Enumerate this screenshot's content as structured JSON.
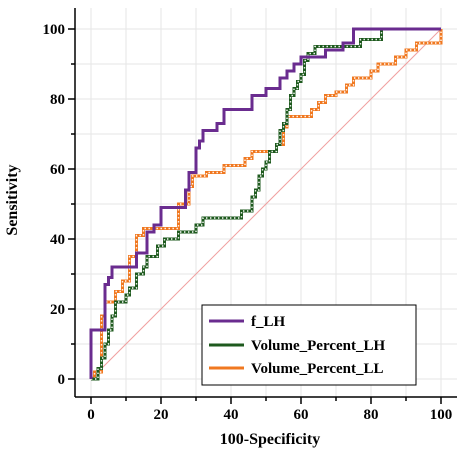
{
  "chart_data": {
    "type": "line",
    "xlabel": "100-Specificity",
    "ylabel": "Sensitivity",
    "xlim": [
      0,
      100
    ],
    "ylim": [
      0,
      100
    ],
    "xticks": [
      "0",
      "20",
      "40",
      "60",
      "80",
      "100"
    ],
    "yticks": [
      "0",
      "20",
      "40",
      "60",
      "80",
      "100"
    ],
    "grid": true,
    "legend_position": "bottom-right",
    "reference_line": {
      "from": [
        0,
        0
      ],
      "to": [
        100,
        100
      ],
      "color": "#f0a0a0"
    },
    "series": [
      {
        "name": "f_LH",
        "color": "#6a2c8f",
        "markers": false,
        "points": [
          [
            0,
            0
          ],
          [
            0,
            14
          ],
          [
            4,
            14
          ],
          [
            4,
            27
          ],
          [
            5,
            27
          ],
          [
            5,
            29
          ],
          [
            6,
            29
          ],
          [
            6,
            32
          ],
          [
            13,
            32
          ],
          [
            13,
            36
          ],
          [
            16,
            36
          ],
          [
            16,
            42
          ],
          [
            18,
            42
          ],
          [
            18,
            44
          ],
          [
            20,
            44
          ],
          [
            20,
            49
          ],
          [
            27,
            49
          ],
          [
            27,
            54
          ],
          [
            28,
            54
          ],
          [
            28,
            59
          ],
          [
            30,
            59
          ],
          [
            30,
            66
          ],
          [
            31,
            66
          ],
          [
            31,
            68
          ],
          [
            32,
            68
          ],
          [
            32,
            71
          ],
          [
            36,
            71
          ],
          [
            36,
            73
          ],
          [
            38,
            73
          ],
          [
            38,
            77
          ],
          [
            46,
            77
          ],
          [
            46,
            81
          ],
          [
            50,
            81
          ],
          [
            50,
            83
          ],
          [
            54,
            83
          ],
          [
            54,
            86
          ],
          [
            56,
            86
          ],
          [
            56,
            88
          ],
          [
            58,
            88
          ],
          [
            58,
            90
          ],
          [
            60,
            90
          ],
          [
            60,
            92
          ],
          [
            67,
            92
          ],
          [
            67,
            94
          ],
          [
            72,
            94
          ],
          [
            72,
            96
          ],
          [
            75,
            96
          ],
          [
            75,
            100
          ],
          [
            100,
            100
          ]
        ]
      },
      {
        "name": "Volume_Percent_LH",
        "color": "#1e5a1e",
        "markers": true,
        "points": [
          [
            0,
            0
          ],
          [
            2,
            0
          ],
          [
            2,
            3
          ],
          [
            3,
            3
          ],
          [
            3,
            6
          ],
          [
            4,
            6
          ],
          [
            4,
            10
          ],
          [
            5,
            10
          ],
          [
            5,
            14
          ],
          [
            6,
            14
          ],
          [
            6,
            18
          ],
          [
            7,
            18
          ],
          [
            7,
            22
          ],
          [
            10,
            22
          ],
          [
            10,
            24
          ],
          [
            11,
            24
          ],
          [
            11,
            26
          ],
          [
            13,
            26
          ],
          [
            13,
            30
          ],
          [
            15,
            30
          ],
          [
            15,
            32
          ],
          [
            16,
            32
          ],
          [
            16,
            35
          ],
          [
            19,
            35
          ],
          [
            19,
            38
          ],
          [
            21,
            38
          ],
          [
            21,
            40
          ],
          [
            25,
            40
          ],
          [
            25,
            42
          ],
          [
            30,
            42
          ],
          [
            30,
            44
          ],
          [
            32,
            44
          ],
          [
            32,
            46
          ],
          [
            43,
            46
          ],
          [
            43,
            48
          ],
          [
            46,
            48
          ],
          [
            46,
            52
          ],
          [
            47,
            52
          ],
          [
            47,
            54
          ],
          [
            48,
            54
          ],
          [
            48,
            58
          ],
          [
            49,
            58
          ],
          [
            49,
            60
          ],
          [
            50,
            60
          ],
          [
            50,
            62
          ],
          [
            51,
            62
          ],
          [
            51,
            65
          ],
          [
            53,
            65
          ],
          [
            53,
            67
          ],
          [
            54,
            67
          ],
          [
            54,
            71
          ],
          [
            55,
            71
          ],
          [
            55,
            73
          ],
          [
            56,
            73
          ],
          [
            56,
            77
          ],
          [
            57,
            77
          ],
          [
            57,
            81
          ],
          [
            58,
            81
          ],
          [
            58,
            83
          ],
          [
            59,
            83
          ],
          [
            59,
            85
          ],
          [
            60,
            85
          ],
          [
            60,
            87
          ],
          [
            61,
            87
          ],
          [
            61,
            91
          ],
          [
            62,
            91
          ],
          [
            62,
            93
          ],
          [
            64,
            93
          ],
          [
            64,
            95
          ],
          [
            77,
            95
          ],
          [
            77,
            97
          ],
          [
            83,
            97
          ],
          [
            83,
            100
          ],
          [
            100,
            100
          ]
        ]
      },
      {
        "name": "Volume_Percent_LL",
        "color": "#f07820",
        "markers": true,
        "points": [
          [
            0,
            0
          ],
          [
            1,
            0
          ],
          [
            1,
            2
          ],
          [
            3,
            2
          ],
          [
            3,
            18
          ],
          [
            4,
            18
          ],
          [
            4,
            22
          ],
          [
            7,
            22
          ],
          [
            7,
            25
          ],
          [
            9,
            25
          ],
          [
            9,
            28
          ],
          [
            11,
            28
          ],
          [
            11,
            35
          ],
          [
            13,
            35
          ],
          [
            13,
            41
          ],
          [
            15,
            41
          ],
          [
            15,
            43
          ],
          [
            25,
            43
          ],
          [
            25,
            50
          ],
          [
            28,
            50
          ],
          [
            28,
            55
          ],
          [
            29,
            55
          ],
          [
            29,
            58
          ],
          [
            33,
            58
          ],
          [
            33,
            59
          ],
          [
            38,
            59
          ],
          [
            38,
            61
          ],
          [
            44,
            61
          ],
          [
            44,
            63
          ],
          [
            46,
            63
          ],
          [
            46,
            65
          ],
          [
            53,
            65
          ],
          [
            53,
            67
          ],
          [
            55,
            67
          ],
          [
            55,
            72
          ],
          [
            56,
            72
          ],
          [
            56,
            75
          ],
          [
            63,
            75
          ],
          [
            63,
            77
          ],
          [
            65,
            77
          ],
          [
            65,
            79
          ],
          [
            67,
            79
          ],
          [
            67,
            81
          ],
          [
            70,
            81
          ],
          [
            70,
            82
          ],
          [
            73,
            82
          ],
          [
            73,
            84
          ],
          [
            75,
            84
          ],
          [
            75,
            86
          ],
          [
            80,
            86
          ],
          [
            80,
            88
          ],
          [
            82,
            88
          ],
          [
            82,
            90
          ],
          [
            87,
            90
          ],
          [
            87,
            92
          ],
          [
            90,
            92
          ],
          [
            90,
            94
          ],
          [
            93,
            94
          ],
          [
            93,
            96
          ],
          [
            100,
            96
          ],
          [
            100,
            100
          ]
        ]
      }
    ]
  }
}
